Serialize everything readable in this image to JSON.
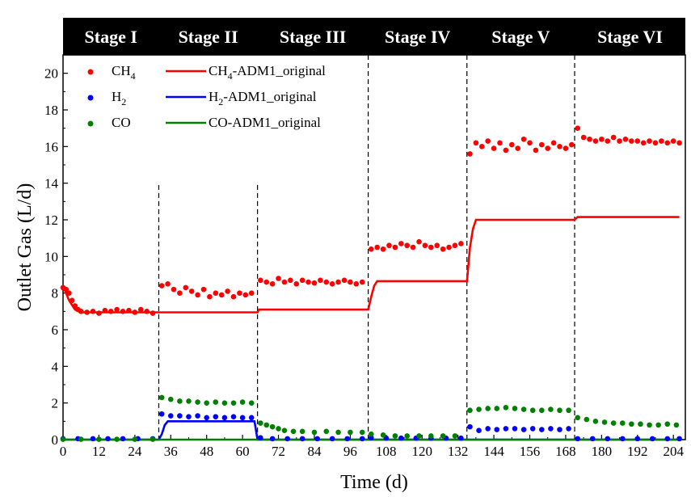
{
  "chart_data": {
    "type": "scatter",
    "xlabel": "Time (d)",
    "ylabel": "Outlet Gas (L/d)",
    "xlim": [
      0,
      208
    ],
    "ylim": [
      0,
      21
    ],
    "x_ticks": [
      0,
      12,
      24,
      36,
      48,
      60,
      72,
      84,
      96,
      108,
      120,
      132,
      144,
      156,
      168,
      180,
      192,
      204
    ],
    "y_ticks": [
      0,
      2,
      4,
      6,
      8,
      10,
      12,
      14,
      16,
      18,
      20
    ],
    "stages": [
      {
        "label": "Stage I",
        "start": 0,
        "end": 32
      },
      {
        "label": "Stage II",
        "start": 32,
        "end": 65
      },
      {
        "label": "Stage III",
        "start": 65,
        "end": 102
      },
      {
        "label": "Stage IV",
        "start": 102,
        "end": 135
      },
      {
        "label": "Stage V",
        "start": 135,
        "end": 171
      },
      {
        "label": "Stage VI",
        "start": 171,
        "end": 208
      }
    ],
    "stage_dividers": [
      32,
      65,
      102,
      135,
      171
    ],
    "scatter_series": [
      {
        "name": "CH4",
        "color": "#ff0000",
        "points": [
          [
            0,
            8.3
          ],
          [
            1,
            8.2
          ],
          [
            2,
            8.0
          ],
          [
            3,
            7.6
          ],
          [
            4,
            7.3
          ],
          [
            5,
            7.1
          ],
          [
            6,
            7.0
          ],
          [
            8,
            6.95
          ],
          [
            10,
            7.0
          ],
          [
            12,
            6.9
          ],
          [
            14,
            7.05
          ],
          [
            16,
            7.0
          ],
          [
            18,
            7.1
          ],
          [
            20,
            7.0
          ],
          [
            22,
            7.05
          ],
          [
            24,
            6.95
          ],
          [
            26,
            7.1
          ],
          [
            28,
            7.0
          ],
          [
            30,
            6.9
          ],
          [
            33,
            8.4
          ],
          [
            35,
            8.5
          ],
          [
            37,
            8.2
          ],
          [
            39,
            8.0
          ],
          [
            41,
            8.3
          ],
          [
            43,
            8.1
          ],
          [
            45,
            7.9
          ],
          [
            47,
            8.2
          ],
          [
            49,
            7.8
          ],
          [
            51,
            8.0
          ],
          [
            53,
            7.9
          ],
          [
            55,
            8.1
          ],
          [
            57,
            7.8
          ],
          [
            59,
            8.0
          ],
          [
            61,
            7.9
          ],
          [
            63,
            8.0
          ],
          [
            66,
            8.7
          ],
          [
            68,
            8.6
          ],
          [
            70,
            8.5
          ],
          [
            72,
            8.8
          ],
          [
            74,
            8.6
          ],
          [
            76,
            8.7
          ],
          [
            78,
            8.5
          ],
          [
            80,
            8.7
          ],
          [
            82,
            8.6
          ],
          [
            84,
            8.55
          ],
          [
            86,
            8.7
          ],
          [
            88,
            8.6
          ],
          [
            90,
            8.5
          ],
          [
            92,
            8.6
          ],
          [
            94,
            8.7
          ],
          [
            96,
            8.6
          ],
          [
            98,
            8.5
          ],
          [
            100,
            8.6
          ],
          [
            103,
            10.4
          ],
          [
            105,
            10.5
          ],
          [
            107,
            10.4
          ],
          [
            109,
            10.6
          ],
          [
            111,
            10.5
          ],
          [
            113,
            10.7
          ],
          [
            115,
            10.6
          ],
          [
            117,
            10.5
          ],
          [
            119,
            10.8
          ],
          [
            121,
            10.6
          ],
          [
            123,
            10.5
          ],
          [
            125,
            10.6
          ],
          [
            127,
            10.4
          ],
          [
            129,
            10.5
          ],
          [
            131,
            10.6
          ],
          [
            133,
            10.7
          ],
          [
            136,
            15.6
          ],
          [
            138,
            16.2
          ],
          [
            140,
            16.0
          ],
          [
            142,
            16.3
          ],
          [
            144,
            15.9
          ],
          [
            146,
            16.2
          ],
          [
            148,
            15.8
          ],
          [
            150,
            16.1
          ],
          [
            152,
            15.9
          ],
          [
            154,
            16.4
          ],
          [
            156,
            16.2
          ],
          [
            158,
            15.8
          ],
          [
            160,
            16.1
          ],
          [
            162,
            15.9
          ],
          [
            164,
            16.2
          ],
          [
            166,
            16.0
          ],
          [
            168,
            15.9
          ],
          [
            170,
            16.1
          ],
          [
            172,
            17.0
          ],
          [
            174,
            16.5
          ],
          [
            176,
            16.4
          ],
          [
            178,
            16.3
          ],
          [
            180,
            16.4
          ],
          [
            182,
            16.3
          ],
          [
            184,
            16.5
          ],
          [
            186,
            16.3
          ],
          [
            188,
            16.4
          ],
          [
            190,
            16.3
          ],
          [
            192,
            16.3
          ],
          [
            194,
            16.2
          ],
          [
            196,
            16.3
          ],
          [
            198,
            16.2
          ],
          [
            200,
            16.3
          ],
          [
            202,
            16.2
          ],
          [
            204,
            16.3
          ],
          [
            206,
            16.2
          ]
        ]
      },
      {
        "name": "H2",
        "color": "#0000ff",
        "points": [
          [
            0,
            0.05
          ],
          [
            5,
            0.05
          ],
          [
            10,
            0.05
          ],
          [
            15,
            0.05
          ],
          [
            20,
            0.05
          ],
          [
            25,
            0.05
          ],
          [
            30,
            0.05
          ],
          [
            33,
            1.4
          ],
          [
            36,
            1.3
          ],
          [
            39,
            1.3
          ],
          [
            42,
            1.25
          ],
          [
            45,
            1.3
          ],
          [
            48,
            1.2
          ],
          [
            51,
            1.25
          ],
          [
            54,
            1.2
          ],
          [
            57,
            1.25
          ],
          [
            60,
            1.2
          ],
          [
            63,
            1.2
          ],
          [
            66,
            0.1
          ],
          [
            70,
            0.05
          ],
          [
            75,
            0.05
          ],
          [
            80,
            0.05
          ],
          [
            85,
            0.05
          ],
          [
            90,
            0.05
          ],
          [
            95,
            0.05
          ],
          [
            100,
            0.05
          ],
          [
            103,
            0.1
          ],
          [
            108,
            0.08
          ],
          [
            113,
            0.08
          ],
          [
            118,
            0.08
          ],
          [
            123,
            0.08
          ],
          [
            128,
            0.08
          ],
          [
            133,
            0.08
          ],
          [
            136,
            0.7
          ],
          [
            139,
            0.5
          ],
          [
            142,
            0.6
          ],
          [
            145,
            0.55
          ],
          [
            148,
            0.6
          ],
          [
            151,
            0.6
          ],
          [
            154,
            0.55
          ],
          [
            157,
            0.6
          ],
          [
            160,
            0.55
          ],
          [
            163,
            0.6
          ],
          [
            166,
            0.55
          ],
          [
            169,
            0.6
          ],
          [
            172,
            0.05
          ],
          [
            177,
            0.05
          ],
          [
            182,
            0.05
          ],
          [
            187,
            0.05
          ],
          [
            192,
            0.05
          ],
          [
            197,
            0.05
          ],
          [
            202,
            0.05
          ],
          [
            206,
            0.05
          ]
        ]
      },
      {
        "name": "CO",
        "color": "#008000",
        "points": [
          [
            0,
            0.02
          ],
          [
            6,
            0.02
          ],
          [
            12,
            0.02
          ],
          [
            18,
            0.02
          ],
          [
            24,
            0.02
          ],
          [
            30,
            0.02
          ],
          [
            33,
            2.3
          ],
          [
            36,
            2.2
          ],
          [
            39,
            2.1
          ],
          [
            42,
            2.1
          ],
          [
            45,
            2.05
          ],
          [
            48,
            2.0
          ],
          [
            51,
            2.05
          ],
          [
            54,
            2.0
          ],
          [
            57,
            2.0
          ],
          [
            60,
            2.05
          ],
          [
            63,
            2.0
          ],
          [
            66,
            0.9
          ],
          [
            68,
            0.8
          ],
          [
            70,
            0.7
          ],
          [
            72,
            0.6
          ],
          [
            74,
            0.5
          ],
          [
            77,
            0.45
          ],
          [
            80,
            0.45
          ],
          [
            84,
            0.4
          ],
          [
            88,
            0.45
          ],
          [
            92,
            0.4
          ],
          [
            96,
            0.4
          ],
          [
            100,
            0.4
          ],
          [
            103,
            0.3
          ],
          [
            107,
            0.25
          ],
          [
            111,
            0.2
          ],
          [
            115,
            0.2
          ],
          [
            119,
            0.2
          ],
          [
            123,
            0.2
          ],
          [
            127,
            0.2
          ],
          [
            131,
            0.2
          ],
          [
            136,
            1.6
          ],
          [
            139,
            1.65
          ],
          [
            142,
            1.7
          ],
          [
            145,
            1.7
          ],
          [
            148,
            1.75
          ],
          [
            151,
            1.7
          ],
          [
            154,
            1.65
          ],
          [
            157,
            1.6
          ],
          [
            160,
            1.6
          ],
          [
            163,
            1.65
          ],
          [
            166,
            1.6
          ],
          [
            169,
            1.6
          ],
          [
            172,
            1.2
          ],
          [
            175,
            1.1
          ],
          [
            178,
            1.0
          ],
          [
            181,
            0.95
          ],
          [
            184,
            0.9
          ],
          [
            187,
            0.9
          ],
          [
            190,
            0.85
          ],
          [
            193,
            0.85
          ],
          [
            196,
            0.8
          ],
          [
            199,
            0.8
          ],
          [
            202,
            0.85
          ],
          [
            205,
            0.8
          ]
        ]
      }
    ],
    "line_series": [
      {
        "name": "CH4-ADM1_original",
        "color": "#ff0000",
        "points": [
          [
            0,
            8.4
          ],
          [
            2,
            7.6
          ],
          [
            4,
            7.1
          ],
          [
            6,
            6.95
          ],
          [
            32,
            6.95
          ],
          [
            65,
            6.95
          ],
          [
            65.5,
            7.1
          ],
          [
            102,
            7.1
          ],
          [
            103,
            7.8
          ],
          [
            104,
            8.4
          ],
          [
            105,
            8.65
          ],
          [
            135,
            8.65
          ],
          [
            136,
            10.5
          ],
          [
            137,
            11.5
          ],
          [
            138,
            12.0
          ],
          [
            171,
            12.0
          ],
          [
            172,
            12.15
          ],
          [
            206,
            12.15
          ]
        ]
      },
      {
        "name": "H2-ADM1_original",
        "color": "#0000ff",
        "points": [
          [
            0,
            0.0
          ],
          [
            32,
            0.0
          ],
          [
            33,
            0.3
          ],
          [
            34,
            0.8
          ],
          [
            35,
            1.0
          ],
          [
            64,
            1.0
          ],
          [
            65,
            0.0
          ],
          [
            206,
            0.0
          ]
        ]
      },
      {
        "name": "CO-ADM1_original",
        "color": "#008000",
        "points": [
          [
            0,
            0.0
          ],
          [
            206,
            0.0
          ]
        ]
      }
    ],
    "legend": {
      "scatter_entries": [
        {
          "base": "CH",
          "sub": "4"
        },
        {
          "base": "H",
          "sub": "2"
        },
        {
          "base": "CO",
          "sub": ""
        }
      ],
      "line_entries": [
        {
          "base": "CH",
          "sub": "4",
          "rest": "-ADM1_original",
          "color": "#ff0000"
        },
        {
          "base": "H",
          "sub": "2",
          "rest": "-ADM1_original",
          "color": "#0000ff"
        },
        {
          "base": "CO",
          "sub": "",
          "rest": "-ADM1_original",
          "color": "#008000"
        }
      ]
    }
  }
}
